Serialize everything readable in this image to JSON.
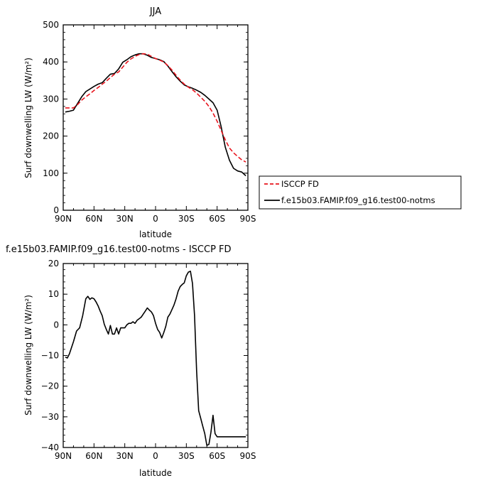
{
  "chart_data": [
    {
      "type": "line",
      "title": "JJA",
      "xlabel": "latitude",
      "ylabel": "Surf downwelling LW (W/m²)",
      "xlim": [
        90,
        -90
      ],
      "ylim": [
        0,
        500
      ],
      "x_ticks": [
        90,
        60,
        30,
        0,
        -30,
        -60,
        -90
      ],
      "x_tick_labels": [
        "90N",
        "60N",
        "30N",
        "0",
        "30S",
        "60S",
        "90S"
      ],
      "y_ticks": [
        0,
        100,
        200,
        300,
        400,
        500
      ],
      "y_tick_labels": [
        "0",
        "100",
        "200",
        "300",
        "400",
        "500"
      ],
      "legend": "outside-right",
      "series": [
        {
          "name": "ISCCP FD",
          "color": "#e8141d",
          "dash": "dashed",
          "x": [
            88,
            84,
            80,
            76,
            72,
            68,
            64,
            60,
            56,
            52,
            48,
            44,
            40,
            36,
            32,
            28,
            24,
            20,
            16,
            12,
            8,
            4,
            0,
            -4,
            -8,
            -12,
            -16,
            -20,
            -24,
            -28,
            -32,
            -36,
            -40,
            -44,
            -48,
            -52,
            -56,
            -60,
            -64,
            -68,
            -72,
            -76,
            -80,
            -84,
            -88
          ],
          "values": [
            276,
            276,
            276,
            285,
            297,
            306,
            314,
            323,
            331,
            340,
            348,
            358,
            367,
            373,
            386,
            399,
            408,
            415,
            420,
            422,
            421,
            415,
            409,
            405,
            400,
            390,
            378,
            364,
            351,
            340,
            332,
            325,
            316,
            305,
            294,
            280,
            262,
            240,
            215,
            190,
            168,
            155,
            145,
            136,
            130
          ]
        },
        {
          "name": "f.e15b03.FAMIP.f09_g16.test00-notms",
          "color": "#000000",
          "dash": "solid",
          "x": [
            88,
            84,
            80,
            76,
            72,
            68,
            64,
            60,
            56,
            52,
            48,
            44,
            40,
            36,
            32,
            28,
            24,
            20,
            16,
            12,
            8,
            4,
            0,
            -4,
            -8,
            -12,
            -16,
            -20,
            -24,
            -28,
            -32,
            -36,
            -40,
            -44,
            -48,
            -52,
            -56,
            -60,
            -64,
            -68,
            -72,
            -76,
            -80,
            -84,
            -88
          ],
          "values": [
            265,
            267,
            270,
            288,
            306,
            320,
            327,
            334,
            340,
            344,
            356,
            367,
            369,
            381,
            399,
            406,
            414,
            419,
            422,
            422,
            418,
            412,
            409,
            406,
            401,
            389,
            374,
            360,
            348,
            338,
            333,
            329,
            324,
            318,
            310,
            300,
            290,
            270,
            225,
            170,
            135,
            113,
            106,
            103,
            93
          ]
        }
      ]
    },
    {
      "type": "line",
      "title": "f.e15b03.FAMIP.f09_g16.test00-notms - ISCCP FD",
      "xlabel": "latitude",
      "ylabel": "Surf downwelling LW (W/m²)",
      "xlim": [
        90,
        -90
      ],
      "ylim": [
        -40,
        20
      ],
      "x_ticks": [
        90,
        60,
        30,
        0,
        -30,
        -60,
        -90
      ],
      "x_tick_labels": [
        "90N",
        "60N",
        "30N",
        "0",
        "30S",
        "60S",
        "90S"
      ],
      "y_ticks": [
        20,
        10,
        0,
        -10,
        -20,
        -30,
        -40
      ],
      "y_tick_labels": [
        "20",
        "10",
        "0",
        "−10",
        "−20",
        "−30",
        "−40"
      ],
      "series": [
        {
          "color": "#000000",
          "dash": "solid",
          "x": [
            88,
            86,
            84,
            80,
            77,
            74,
            71,
            68,
            66,
            64,
            62,
            60,
            58,
            56,
            54,
            52,
            50,
            48,
            46,
            44,
            42,
            40,
            38,
            36,
            34,
            32,
            30,
            28,
            26,
            24,
            22,
            20,
            18,
            16,
            14,
            12,
            10,
            8,
            6,
            4,
            2,
            0,
            -2,
            -4,
            -6,
            -8,
            -10,
            -12,
            -14,
            -16,
            -18,
            -20,
            -22,
            -24,
            -26,
            -28,
            -30,
            -32,
            -34,
            -36,
            -38,
            -40,
            -42,
            -44,
            -46,
            -48,
            -50,
            -52,
            -54,
            -56,
            -58,
            -60,
            -62,
            -64,
            -66,
            -68,
            -70,
            -72,
            -74,
            -76,
            -78,
            -80,
            -82,
            -84,
            -86,
            -88
          ],
          "values": [
            -10.5,
            -10.8,
            -9.5,
            -5.5,
            -2,
            -1,
            3,
            8.5,
            9.3,
            8.3,
            8.8,
            8.5,
            7.5,
            6.2,
            4.5,
            3,
            0.2,
            -1.5,
            -3,
            -0.2,
            -3,
            -3,
            -1,
            -3,
            -1,
            -1,
            -1,
            0,
            0.5,
            0.5,
            1,
            0.5,
            1.5,
            2,
            2.5,
            3.5,
            4.5,
            5.5,
            4.8,
            4.2,
            3,
            0.5,
            -1.5,
            -2.5,
            -4.3,
            -2.5,
            -0.5,
            2.5,
            3.5,
            5,
            6.5,
            8.5,
            11,
            12.5,
            13.2,
            13.7,
            16,
            17.2,
            17.5,
            13.5,
            3,
            -15,
            -28,
            -30.5,
            -33,
            -35.5,
            -39.3,
            -39,
            -35,
            -29.5,
            -35.5,
            -36.5,
            -36.5,
            -36.5,
            -36.5,
            -36.5,
            -36.5,
            -36.5,
            -36.5,
            -36.5,
            -36.5,
            -36.5,
            -36.5,
            -36.5,
            -36.5,
            -36.5
          ]
        }
      ]
    }
  ]
}
